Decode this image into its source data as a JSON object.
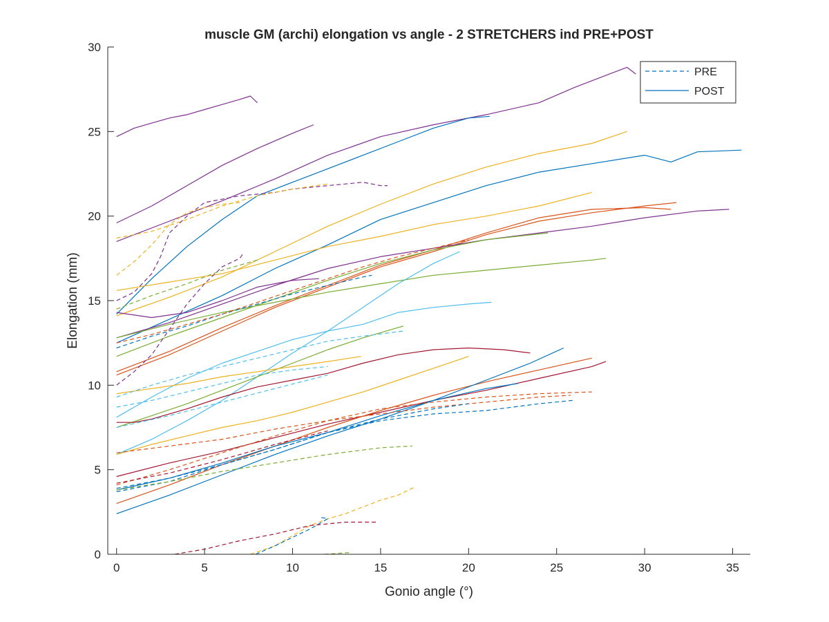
{
  "chart_data": {
    "type": "line",
    "title": "muscle GM (archi) elongation vs angle - 2 STRETCHERS ind PRE+POST",
    "xlabel": "Gonio angle (°)",
    "ylabel": "Elongation (mm)",
    "xlim": [
      -0.5,
      36
    ],
    "ylim": [
      0,
      30
    ],
    "xticks": [
      0,
      5,
      10,
      15,
      20,
      25,
      30,
      35
    ],
    "yticks": [
      0,
      5,
      10,
      15,
      20,
      25,
      30
    ],
    "grid": false,
    "legend_position": "top-right",
    "legend": [
      {
        "label": "PRE",
        "style": "dashed",
        "color": "#0072BD"
      },
      {
        "label": "POST",
        "style": "solid",
        "color": "#0072BD"
      }
    ],
    "series": [
      {
        "style": "solid",
        "color": "#7E2F8E",
        "x": [
          0,
          1,
          2,
          3,
          4,
          5,
          6,
          7,
          7.6,
          8
        ],
        "y": [
          24.7,
          25.2,
          25.5,
          25.8,
          26.0,
          26.3,
          26.6,
          26.9,
          27.1,
          26.7
        ]
      },
      {
        "style": "solid",
        "color": "#7E2F8E",
        "x": [
          0,
          2,
          4,
          6,
          8,
          10,
          11.2
        ],
        "y": [
          19.6,
          20.6,
          21.8,
          23.0,
          24.0,
          24.9,
          25.4
        ]
      },
      {
        "style": "solid",
        "color": "#7E2F8E",
        "x": [
          0,
          3,
          6,
          9,
          12,
          15,
          18,
          21,
          24,
          26,
          28,
          29,
          29.5
        ],
        "y": [
          18.5,
          19.7,
          20.9,
          22.2,
          23.6,
          24.7,
          25.4,
          26.0,
          26.7,
          27.6,
          28.4,
          28.8,
          28.4
        ]
      },
      {
        "style": "solid",
        "color": "#0072BD",
        "x": [
          0,
          2,
          4,
          6,
          8,
          10,
          12,
          14,
          16,
          18,
          20,
          21.2
        ],
        "y": [
          14.2,
          16.3,
          18.2,
          19.8,
          21.2,
          22.0,
          22.8,
          23.6,
          24.4,
          25.2,
          25.8,
          25.9
        ]
      },
      {
        "style": "solid",
        "color": "#EDB120",
        "x": [
          0,
          3,
          6,
          9,
          12,
          15,
          18,
          21,
          24,
          27,
          29
        ],
        "y": [
          14.1,
          15.2,
          16.4,
          17.9,
          19.4,
          20.7,
          21.9,
          22.9,
          23.7,
          24.3,
          25.0
        ]
      },
      {
        "style": "solid",
        "color": "#0072BD",
        "x": [
          0,
          3,
          6,
          9,
          12,
          15,
          18,
          21,
          24,
          27,
          30,
          31.5,
          33,
          35.5
        ],
        "y": [
          12.5,
          13.9,
          15.3,
          16.9,
          18.3,
          19.8,
          20.8,
          21.8,
          22.6,
          23.1,
          23.6,
          23.2,
          23.8,
          23.9
        ]
      },
      {
        "style": "solid",
        "color": "#EDB120",
        "x": [
          0,
          3,
          6,
          9,
          12,
          15,
          18,
          21,
          24,
          27
        ],
        "y": [
          15.6,
          16.1,
          16.6,
          17.4,
          18.2,
          18.8,
          19.5,
          20.0,
          20.6,
          21.4
        ]
      },
      {
        "style": "solid",
        "color": "#D95319",
        "x": [
          0,
          3,
          6,
          9,
          12,
          15,
          18,
          21,
          24,
          27,
          30,
          31.8
        ],
        "y": [
          10.6,
          11.8,
          13.2,
          14.6,
          15.8,
          17.0,
          17.9,
          18.9,
          19.7,
          20.2,
          20.6,
          20.8
        ]
      },
      {
        "style": "solid",
        "color": "#D95319",
        "x": [
          0,
          3,
          6,
          9,
          12,
          15,
          18,
          21,
          24,
          27,
          30,
          31.5
        ],
        "y": [
          10.8,
          12.0,
          13.4,
          14.7,
          15.9,
          17.1,
          18.0,
          19.0,
          19.9,
          20.4,
          20.5,
          20.4
        ]
      },
      {
        "style": "solid",
        "color": "#7E2F8E",
        "x": [
          0,
          3,
          6,
          9,
          12,
          15,
          18,
          21,
          24,
          27,
          30,
          33,
          34.8
        ],
        "y": [
          12.8,
          13.7,
          14.8,
          15.9,
          16.9,
          17.6,
          18.1,
          18.6,
          19.0,
          19.4,
          19.9,
          20.3,
          20.4
        ]
      },
      {
        "style": "solid",
        "color": "#77AC30",
        "x": [
          0,
          3,
          6,
          9,
          12,
          15,
          18,
          21,
          24.5
        ],
        "y": [
          11.7,
          12.9,
          14.0,
          15.1,
          16.2,
          17.2,
          18.0,
          18.6,
          19.0
        ]
      },
      {
        "style": "solid",
        "color": "#77AC30",
        "x": [
          0,
          3,
          6,
          9,
          12,
          15,
          18,
          21,
          24,
          27,
          27.8
        ],
        "y": [
          12.8,
          13.6,
          14.3,
          14.9,
          15.5,
          16.0,
          16.5,
          16.8,
          17.1,
          17.4,
          17.5
        ]
      },
      {
        "style": "solid",
        "color": "#4DBEEE",
        "x": [
          0,
          2,
          4,
          6,
          8,
          10,
          12,
          14,
          16,
          18,
          19.5
        ],
        "y": [
          5.9,
          6.8,
          7.9,
          9.1,
          10.5,
          11.9,
          13.2,
          14.6,
          16.0,
          17.2,
          17.9
        ]
      },
      {
        "style": "solid",
        "color": "#4DBEEE",
        "x": [
          0,
          2,
          4,
          6,
          8,
          10,
          12,
          14,
          16,
          18,
          20,
          21.3
        ],
        "y": [
          8.1,
          9.3,
          10.4,
          11.3,
          12.0,
          12.7,
          13.2,
          13.6,
          14.3,
          14.6,
          14.8,
          14.9
        ]
      },
      {
        "style": "solid",
        "color": "#77AC30",
        "x": [
          0,
          2,
          4,
          6,
          8,
          10,
          12,
          14,
          16.3
        ],
        "y": [
          7.5,
          8.2,
          8.9,
          9.7,
          10.5,
          11.3,
          12.1,
          12.8,
          13.5
        ]
      },
      {
        "style": "solid",
        "color": "#A2142F",
        "x": [
          0,
          1,
          2,
          4,
          6,
          8,
          10,
          12,
          14,
          16,
          18,
          20,
          22,
          23.5
        ],
        "y": [
          7.8,
          7.8,
          8.0,
          8.6,
          9.3,
          9.9,
          10.3,
          10.7,
          11.3,
          11.8,
          12.1,
          12.2,
          12.1,
          11.9
        ]
      },
      {
        "style": "solid",
        "color": "#EDB120",
        "x": [
          0,
          2,
          4,
          6,
          8,
          10,
          12,
          13.9
        ],
        "y": [
          9.5,
          9.8,
          10.1,
          10.5,
          10.8,
          11.1,
          11.4,
          11.7
        ]
      },
      {
        "style": "solid",
        "color": "#EDB120",
        "x": [
          0,
          2,
          4,
          6,
          8,
          10,
          12,
          14,
          16,
          18,
          20
        ],
        "y": [
          5.9,
          6.5,
          7.0,
          7.5,
          7.9,
          8.4,
          9.0,
          9.6,
          10.3,
          11.0,
          11.7
        ]
      },
      {
        "style": "solid",
        "color": "#A2142F",
        "x": [
          0,
          3,
          6,
          9,
          12,
          15,
          18,
          21,
          24,
          27,
          27.8
        ],
        "y": [
          4.6,
          5.4,
          6.1,
          6.9,
          7.7,
          8.4,
          9.1,
          9.7,
          10.4,
          11.1,
          11.4
        ]
      },
      {
        "style": "solid",
        "color": "#D95319",
        "x": [
          0,
          3,
          6,
          9,
          12,
          15,
          18,
          21,
          24,
          27
        ],
        "y": [
          3.0,
          4.1,
          5.3,
          6.4,
          7.5,
          8.5,
          9.4,
          10.2,
          10.9,
          11.6
        ]
      },
      {
        "style": "solid",
        "color": "#0072BD",
        "x": [
          0,
          3,
          6,
          9,
          12,
          15,
          18,
          21,
          23.5,
          25.4
        ],
        "y": [
          2.4,
          3.5,
          4.7,
          5.9,
          7.0,
          8.0,
          9.1,
          10.3,
          11.3,
          12.2
        ]
      },
      {
        "style": "solid",
        "color": "#0072BD",
        "x": [
          0,
          3,
          6,
          9,
          12,
          15,
          18,
          21,
          22.8
        ],
        "y": [
          3.8,
          4.5,
          5.4,
          6.4,
          7.2,
          8.2,
          9.1,
          9.8,
          10.1
        ]
      },
      {
        "style": "solid",
        "color": "#7E2F8E",
        "x": [
          0,
          2,
          4,
          6,
          8,
          10,
          11.5
        ],
        "y": [
          14.3,
          14.0,
          14.3,
          15.0,
          15.8,
          16.2,
          16.3
        ]
      },
      {
        "style": "dashed",
        "color": "#7E2F8E",
        "x": [
          0,
          1,
          2,
          2.5,
          3,
          4,
          5,
          6,
          7,
          8,
          9,
          10,
          11,
          12,
          13,
          14,
          15,
          15.4
        ],
        "y": [
          15.0,
          15.5,
          16.6,
          17.6,
          19.0,
          20.0,
          20.8,
          21.0,
          21.2,
          21.3,
          21.4,
          21.6,
          21.7,
          21.8,
          21.9,
          22.0,
          21.8,
          21.8
        ]
      },
      {
        "style": "dashed",
        "color": "#EDB120",
        "x": [
          0,
          2,
          4,
          6,
          8,
          10,
          12
        ],
        "y": [
          18.7,
          19.1,
          19.8,
          20.6,
          21.2,
          21.6,
          21.9
        ]
      },
      {
        "style": "dashed",
        "color": "#EDB120",
        "x": [
          0,
          1,
          2,
          3,
          4,
          5,
          6,
          7
        ],
        "y": [
          16.5,
          17.3,
          18.3,
          19.5,
          20.2,
          20.5,
          20.7,
          20.8
        ]
      },
      {
        "style": "dashed",
        "color": "#7E2F8E",
        "x": [
          0,
          1,
          2,
          3,
          4,
          5,
          6,
          7,
          7.2
        ],
        "y": [
          10.0,
          10.8,
          11.8,
          13.3,
          14.8,
          16.0,
          17.0,
          17.5,
          17.8
        ]
      },
      {
        "style": "dashed",
        "color": "#77AC30",
        "x": [
          0,
          2,
          4,
          6,
          8
        ],
        "y": [
          14.5,
          15.3,
          16.0,
          16.8,
          17.4
        ]
      },
      {
        "style": "dashed",
        "color": "#0072BD",
        "x": [
          0,
          2,
          4,
          6,
          8,
          10,
          12,
          14,
          14.5
        ],
        "y": [
          12.2,
          12.9,
          13.5,
          14.2,
          14.8,
          15.4,
          15.9,
          16.4,
          16.5
        ]
      },
      {
        "style": "dashed",
        "color": "#D95319",
        "x": [
          0,
          2,
          4,
          6,
          8,
          10,
          12,
          14,
          16,
          18,
          20
        ],
        "y": [
          12.5,
          13.0,
          13.6,
          14.2,
          14.9,
          15.6,
          16.3,
          17.0,
          17.6,
          18.1,
          18.6
        ]
      },
      {
        "style": "dashed",
        "color": "#4DBEEE",
        "x": [
          0,
          2,
          4,
          6,
          8,
          10,
          12,
          14,
          16.3
        ],
        "y": [
          9.3,
          10.0,
          10.6,
          11.1,
          11.6,
          12.1,
          12.6,
          12.9,
          13.2
        ]
      },
      {
        "style": "dashed",
        "color": "#4DBEEE",
        "x": [
          0,
          2,
          4,
          6,
          8,
          10,
          12
        ],
        "y": [
          8.7,
          9.1,
          9.6,
          10.1,
          10.6,
          10.9,
          11.1
        ]
      },
      {
        "style": "dashed",
        "color": "#4DBEEE",
        "x": [
          0,
          3,
          6,
          9,
          12
        ],
        "y": [
          7.5,
          8.2,
          9.0,
          9.8,
          10.6
        ]
      },
      {
        "style": "dashed",
        "color": "#D95319",
        "x": [
          0,
          3,
          6,
          9,
          12,
          15,
          18,
          21,
          24,
          27
        ],
        "y": [
          4.1,
          5.0,
          6.0,
          7.0,
          7.9,
          8.6,
          9.0,
          9.3,
          9.5,
          9.6
        ]
      },
      {
        "style": "dashed",
        "color": "#D95319",
        "x": [
          0,
          3,
          6,
          9,
          12,
          15,
          18,
          21,
          24,
          25.8
        ],
        "y": [
          6.0,
          6.4,
          6.8,
          7.4,
          7.9,
          8.3,
          8.7,
          9.0,
          9.3,
          9.4
        ]
      },
      {
        "style": "dashed",
        "color": "#0072BD",
        "x": [
          0,
          3,
          6,
          9,
          12,
          15,
          18,
          21,
          24,
          25.9
        ],
        "y": [
          3.7,
          4.3,
          5.3,
          6.2,
          7.2,
          7.9,
          8.3,
          8.5,
          8.9,
          9.1
        ]
      },
      {
        "style": "dashed",
        "color": "#0072BD",
        "x": [
          0,
          3,
          6,
          9,
          12,
          15,
          18,
          20
        ],
        "y": [
          3.9,
          4.5,
          5.3,
          6.2,
          7.2,
          8.0,
          8.6,
          8.9
        ]
      },
      {
        "style": "dashed",
        "color": "#77AC30",
        "x": [
          0,
          3,
          6,
          9,
          12,
          15,
          16.8
        ],
        "y": [
          3.8,
          4.3,
          4.9,
          5.4,
          5.9,
          6.3,
          6.4
        ]
      },
      {
        "style": "dashed",
        "color": "#A2142F",
        "x": [
          0,
          3,
          6,
          9,
          12
        ],
        "y": [
          4.2,
          4.8,
          5.6,
          6.5,
          7.3
        ]
      },
      {
        "style": "dashed",
        "color": "#EDB120",
        "x": [
          7.6,
          9,
          10,
          11,
          12,
          13,
          14,
          15,
          16,
          17
        ],
        "y": [
          0,
          0.5,
          1.1,
          1.7,
          2.1,
          2.4,
          2.8,
          3.2,
          3.5,
          4.0
        ]
      },
      {
        "style": "dashed",
        "color": "#0072BD",
        "x": [
          7.9,
          9,
          10,
          11,
          12,
          11.5
        ],
        "y": [
          0,
          0.5,
          1.0,
          1.5,
          2.1,
          2.2
        ]
      },
      {
        "style": "dashed",
        "color": "#A2142F",
        "x": [
          3.3,
          5,
          7,
          9,
          11,
          13,
          14.8
        ],
        "y": [
          0,
          0.3,
          0.8,
          1.2,
          1.7,
          1.9,
          1.9
        ]
      },
      {
        "style": "dashed",
        "color": "#77AC30",
        "x": [
          11.8,
          12.5,
          13.2
        ],
        "y": [
          0,
          0.05,
          0.1
        ]
      }
    ]
  }
}
